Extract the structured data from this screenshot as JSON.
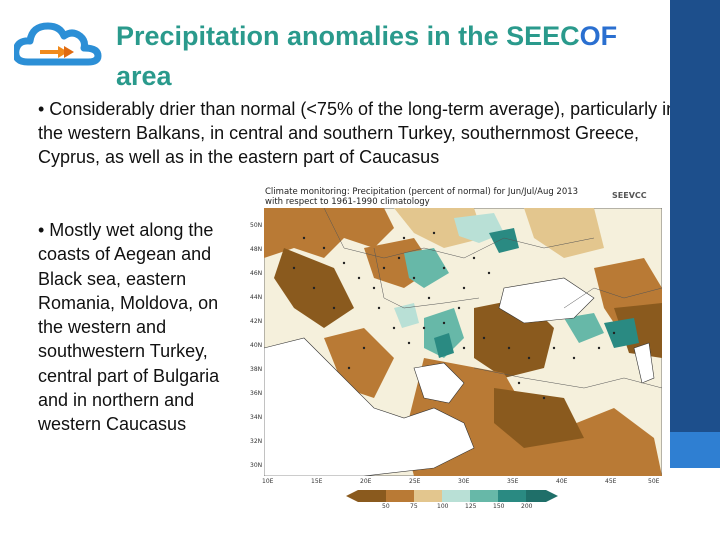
{
  "slide": {
    "title_part1": "Precipitation anomalies in the SEEC",
    "title_part2": "OF",
    "title_part3": "area",
    "bullet1": "• Considerably drier than normal (<75% of the long-term average), particularly in the western Balkans, in central and southern Turkey, southernmost Greece, Cyprus, as well as in the eastern part of Caucasus",
    "bullet2": "• Mostly wet along the coasts of Aegean and Black sea, eastern Romania, Moldova, on the western and southwestern Turkey, central part of Bulgaria and in northern and western Caucasus"
  },
  "map": {
    "title_line1": "Climate monitoring: Precipitation (percent of normal) for Jun/Jul/Aug 2013",
    "title_line2": "with respect to 1961-1990 climatology",
    "logo_text": "SEEVCC",
    "lat_labels": [
      "50N",
      "48N",
      "46N",
      "44N",
      "42N",
      "40N",
      "38N",
      "36N",
      "34N",
      "32N",
      "30N"
    ],
    "lon_labels": [
      "10E",
      "15E",
      "20E",
      "25E",
      "30E",
      "35E",
      "40E",
      "45E",
      "50E"
    ],
    "colorbar_labels": [
      "50",
      "75",
      "100",
      "125",
      "150",
      "200"
    ],
    "colors": {
      "very_dry": "#8a5a1e",
      "dry": "#b97a35",
      "slightly_dry": "#e3c68e",
      "normal": "#f5f0dc",
      "slightly_wet": "#b9e0d6",
      "wet": "#67b8a8",
      "very_wet": "#2a8a82",
      "sea": "#ffffff"
    }
  },
  "theme": {
    "title_color": "#2a9a8c",
    "title_accent": "#2a6fd0",
    "bar_dark": "#1d4f8c",
    "bar_light": "#2f7fd2"
  }
}
